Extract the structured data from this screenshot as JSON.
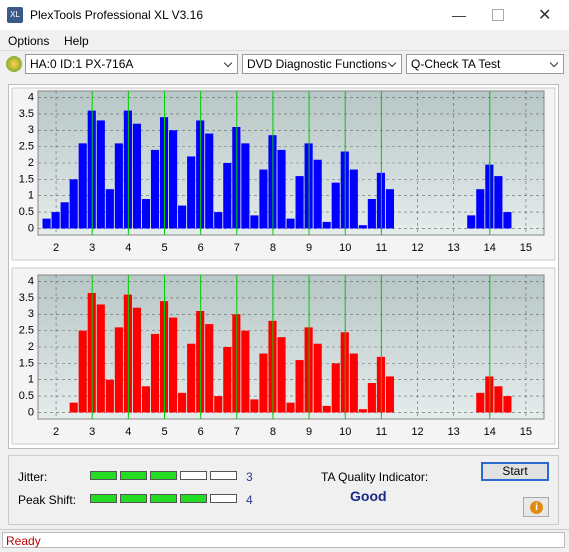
{
  "window": {
    "title": "PlexTools Professional XL V3.16"
  },
  "menu": [
    "Options",
    "Help"
  ],
  "toolbar": {
    "drive": "HA:0 ID:1  PX-716A",
    "function": "DVD Diagnostic Functions",
    "test": "Q-Check TA Test"
  },
  "chart_data": [
    {
      "type": "bar",
      "color": "#0000ff",
      "x": [
        1.75,
        2.0,
        2.25,
        2.5,
        2.75,
        3.0,
        3.25,
        3.5,
        3.75,
        4.0,
        4.25,
        4.5,
        4.75,
        5.0,
        5.25,
        5.5,
        5.75,
        6.0,
        6.25,
        6.5,
        6.75,
        7.0,
        7.25,
        7.5,
        7.75,
        8.0,
        8.25,
        8.5,
        8.75,
        9.0,
        9.25,
        9.5,
        9.75,
        10.0,
        10.25,
        10.5,
        10.75,
        11.0,
        11.25,
        13.5,
        13.75,
        14.0,
        14.25,
        14.5
      ],
      "values": [
        0.3,
        0.5,
        0.8,
        1.5,
        2.6,
        3.6,
        3.3,
        1.2,
        2.6,
        3.6,
        3.2,
        0.9,
        2.4,
        3.4,
        3.0,
        0.7,
        2.2,
        3.3,
        2.9,
        0.5,
        2.0,
        3.1,
        2.6,
        0.4,
        1.8,
        2.85,
        2.4,
        0.3,
        1.6,
        2.6,
        2.1,
        0.2,
        1.4,
        2.35,
        1.8,
        0.1,
        0.9,
        1.7,
        1.2,
        0.4,
        1.2,
        1.95,
        1.6,
        0.5
      ],
      "xlim": [
        1.5,
        15.5
      ],
      "ylim": [
        -0.2,
        4.2
      ],
      "xticks": [
        2,
        3,
        4,
        5,
        6,
        7,
        8,
        9,
        10,
        11,
        12,
        13,
        14,
        15
      ],
      "yticks": [
        0,
        0.5,
        1,
        1.5,
        2,
        2.5,
        3,
        3.5,
        4
      ],
      "grid": true,
      "markers": [
        3,
        4,
        5,
        6,
        7,
        8,
        9,
        10,
        11,
        14
      ],
      "marker_color": "#00d000"
    },
    {
      "type": "bar",
      "color": "#ff0000",
      "x": [
        2.5,
        2.75,
        3.0,
        3.25,
        3.5,
        3.75,
        4.0,
        4.25,
        4.5,
        4.75,
        5.0,
        5.25,
        5.5,
        5.75,
        6.0,
        6.25,
        6.5,
        6.75,
        7.0,
        7.25,
        7.5,
        7.75,
        8.0,
        8.25,
        8.5,
        8.75,
        9.0,
        9.25,
        9.5,
        9.75,
        10.0,
        10.25,
        10.5,
        10.75,
        11.0,
        11.25,
        13.75,
        14.0,
        14.25,
        14.5
      ],
      "values": [
        0.3,
        2.5,
        3.65,
        3.3,
        1.0,
        2.6,
        3.6,
        3.2,
        0.8,
        2.4,
        3.4,
        2.9,
        0.6,
        2.1,
        3.1,
        2.7,
        0.5,
        2.0,
        3.0,
        2.5,
        0.4,
        1.8,
        2.8,
        2.3,
        0.3,
        1.6,
        2.6,
        2.1,
        0.2,
        1.5,
        2.45,
        1.8,
        0.1,
        0.9,
        1.7,
        1.1,
        0.6,
        1.1,
        0.8,
        0.5
      ],
      "xlim": [
        1.5,
        15.5
      ],
      "ylim": [
        -0.2,
        4.2
      ],
      "xticks": [
        2,
        3,
        4,
        5,
        6,
        7,
        8,
        9,
        10,
        11,
        12,
        13,
        14,
        15
      ],
      "yticks": [
        0,
        0.5,
        1,
        1.5,
        2,
        2.5,
        3,
        3.5,
        4
      ],
      "grid": true,
      "markers": [
        3,
        4,
        5,
        6,
        7,
        8,
        9,
        10,
        11,
        14
      ],
      "marker_color": "#00d000"
    }
  ],
  "meters": {
    "cells": 5,
    "jitter": {
      "label": "Jitter:",
      "value": 3
    },
    "peak_shift": {
      "label": "Peak Shift:",
      "value": 4
    }
  },
  "quality": {
    "label": "TA Quality Indicator:",
    "value": "Good"
  },
  "start_button": "Start",
  "status": "Ready"
}
